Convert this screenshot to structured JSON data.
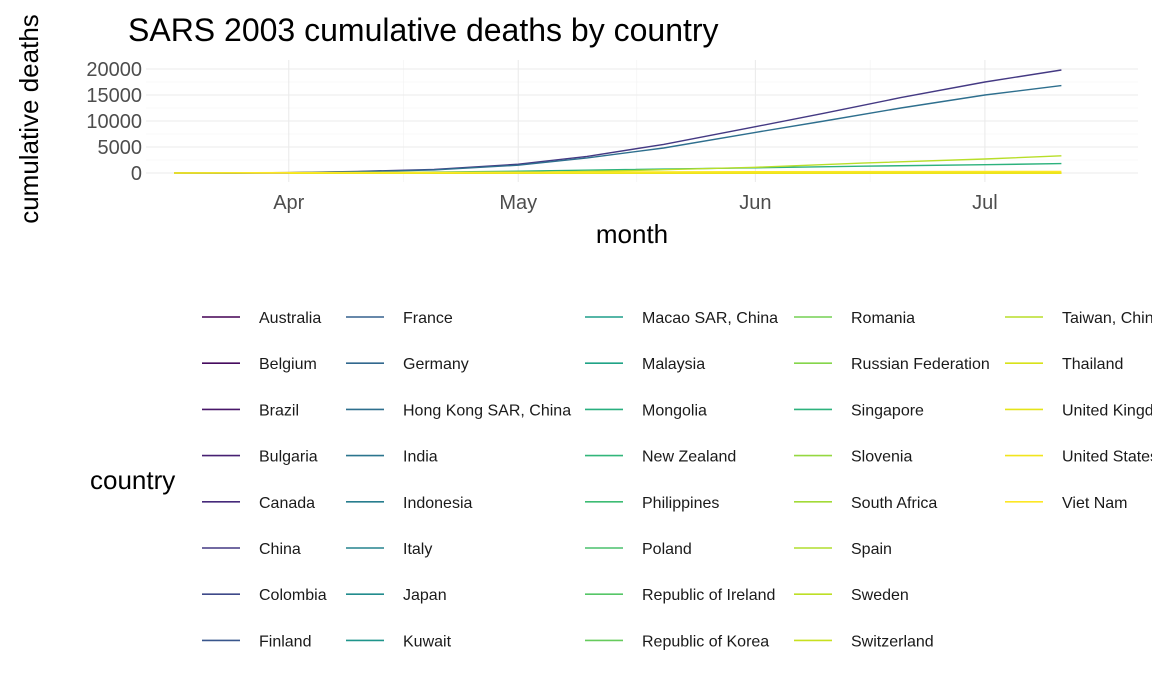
{
  "chart_data": {
    "type": "line",
    "title": "SARS 2003 cumulative deaths by country",
    "xlabel": "month",
    "ylabel": "cumulative deaths",
    "x_ticks": [
      {
        "date": "2003-04-01",
        "label": "Apr"
      },
      {
        "date": "2003-05-01",
        "label": "May"
      },
      {
        "date": "2003-06-01",
        "label": "Jun"
      },
      {
        "date": "2003-07-01",
        "label": "Jul"
      }
    ],
    "y_ticks": [
      0,
      5000,
      10000,
      15000,
      20000
    ],
    "xlim": [
      "2003-03-17",
      "2003-07-11"
    ],
    "ylim": [
      0,
      20000
    ],
    "grid": true,
    "legend_position": "bottom",
    "legend_title": "country",
    "series": [
      {
        "name": "Australia",
        "color": "#440154",
        "x": [
          "2003-04-01",
          "2003-05-01",
          "2003-06-01",
          "2003-07-11"
        ],
        "values": [
          0,
          0,
          0,
          0
        ]
      },
      {
        "name": "Belgium",
        "color": "#460b5e",
        "x": [
          "2003-04-01",
          "2003-05-01",
          "2003-06-01",
          "2003-07-11"
        ],
        "values": [
          0,
          0,
          0,
          0
        ]
      },
      {
        "name": "Brazil",
        "color": "#481769",
        "x": [
          "2003-04-01",
          "2003-05-01",
          "2003-06-01",
          "2003-07-11"
        ],
        "values": [
          0,
          0,
          0,
          0
        ]
      },
      {
        "name": "Bulgaria",
        "color": "#472072",
        "x": [
          "2003-04-01",
          "2003-05-01",
          "2003-06-01",
          "2003-07-11"
        ],
        "values": [
          0,
          0,
          0,
          0
        ]
      },
      {
        "name": "Canada",
        "color": "#46297a",
        "x": [
          "2003-03-17",
          "2003-04-01",
          "2003-05-01",
          "2003-06-01",
          "2003-07-11"
        ],
        "values": [
          0,
          0,
          0,
          0,
          0
        ]
      },
      {
        "name": "China",
        "color": "#443983",
        "x": [
          "2003-03-17",
          "2003-03-25",
          "2003-04-01",
          "2003-04-10",
          "2003-04-20",
          "2003-05-01",
          "2003-05-10",
          "2003-05-20",
          "2003-06-01",
          "2003-06-10",
          "2003-06-20",
          "2003-07-01",
          "2003-07-11"
        ],
        "values": [
          0,
          0,
          80,
          300,
          700,
          1700,
          3200,
          5500,
          8900,
          11500,
          14500,
          17500,
          19800
        ]
      },
      {
        "name": "Colombia",
        "color": "#3e4989",
        "x": [
          "2003-04-01",
          "2003-05-01",
          "2003-06-01",
          "2003-07-11"
        ],
        "values": [
          0,
          0,
          0,
          0
        ]
      },
      {
        "name": "Finland",
        "color": "#39568c",
        "x": [
          "2003-04-01",
          "2003-05-01",
          "2003-06-01",
          "2003-07-11"
        ],
        "values": [
          0,
          0,
          0,
          0
        ]
      },
      {
        "name": "France",
        "color": "#35608d",
        "x": [
          "2003-04-01",
          "2003-05-01",
          "2003-06-01",
          "2003-07-11"
        ],
        "values": [
          0,
          0,
          0,
          0
        ]
      },
      {
        "name": "Germany",
        "color": "#31688e",
        "x": [
          "2003-04-01",
          "2003-05-01",
          "2003-06-01",
          "2003-07-11"
        ],
        "values": [
          0,
          0,
          0,
          0
        ]
      },
      {
        "name": "Hong Kong SAR, China",
        "color": "#2e6f8e",
        "x": [
          "2003-03-17",
          "2003-03-25",
          "2003-04-01",
          "2003-04-10",
          "2003-04-20",
          "2003-05-01",
          "2003-05-10",
          "2003-05-20",
          "2003-06-01",
          "2003-06-10",
          "2003-06-20",
          "2003-07-01",
          "2003-07-11"
        ],
        "values": [
          0,
          0,
          60,
          250,
          600,
          1500,
          2900,
          4800,
          7800,
          10000,
          12500,
          15000,
          16800
        ]
      },
      {
        "name": "India",
        "color": "#2b758e",
        "x": [
          "2003-04-01",
          "2003-05-01",
          "2003-06-01",
          "2003-07-11"
        ],
        "values": [
          0,
          0,
          0,
          0
        ]
      },
      {
        "name": "Indonesia",
        "color": "#287d8e",
        "x": [
          "2003-04-01",
          "2003-05-01",
          "2003-06-01",
          "2003-07-11"
        ],
        "values": [
          0,
          0,
          0,
          0
        ]
      },
      {
        "name": "Italy",
        "color": "#25838e",
        "x": [
          "2003-04-01",
          "2003-05-01",
          "2003-06-01",
          "2003-07-11"
        ],
        "values": [
          0,
          0,
          0,
          0
        ]
      },
      {
        "name": "Japan",
        "color": "#228c8d",
        "x": [
          "2003-04-01",
          "2003-05-01",
          "2003-06-01",
          "2003-07-11"
        ],
        "values": [
          0,
          0,
          0,
          0
        ]
      },
      {
        "name": "Kuwait",
        "color": "#1f958b",
        "x": [
          "2003-04-01",
          "2003-05-01",
          "2003-06-01",
          "2003-07-11"
        ],
        "values": [
          0,
          0,
          0,
          0
        ]
      },
      {
        "name": "Macao SAR, China",
        "color": "#1f9d8a",
        "x": [
          "2003-04-01",
          "2003-05-01",
          "2003-06-01",
          "2003-07-11"
        ],
        "values": [
          0,
          0,
          0,
          0
        ]
      },
      {
        "name": "Malaysia",
        "color": "#20a386",
        "x": [
          "2003-04-01",
          "2003-05-01",
          "2003-06-01",
          "2003-07-11"
        ],
        "values": [
          0,
          0,
          0,
          0
        ]
      },
      {
        "name": "Mongolia",
        "color": "#29af7f",
        "x": [
          "2003-04-01",
          "2003-05-01",
          "2003-06-01",
          "2003-07-11"
        ],
        "values": [
          0,
          0,
          0,
          0
        ]
      },
      {
        "name": "New Zealand",
        "color": "#32b67a",
        "x": [
          "2003-04-01",
          "2003-05-01",
          "2003-06-01",
          "2003-07-11"
        ],
        "values": [
          0,
          0,
          0,
          0
        ]
      },
      {
        "name": "Philippines",
        "color": "#3dbc74",
        "x": [
          "2003-04-01",
          "2003-05-01",
          "2003-06-01",
          "2003-07-11"
        ],
        "values": [
          0,
          0,
          0,
          0
        ]
      },
      {
        "name": "Poland",
        "color": "#4ac16d",
        "x": [
          "2003-04-01",
          "2003-05-01",
          "2003-06-01",
          "2003-07-11"
        ],
        "values": [
          0,
          0,
          0,
          0
        ]
      },
      {
        "name": "Republic of Ireland",
        "color": "#56c667",
        "x": [
          "2003-04-01",
          "2003-05-01",
          "2003-06-01",
          "2003-07-11"
        ],
        "values": [
          0,
          0,
          0,
          0
        ]
      },
      {
        "name": "Republic of Korea",
        "color": "#66cb5d",
        "x": [
          "2003-04-01",
          "2003-05-01",
          "2003-06-01",
          "2003-07-11"
        ],
        "values": [
          0,
          0,
          0,
          0
        ]
      },
      {
        "name": "Romania",
        "color": "#75d054",
        "x": [
          "2003-04-01",
          "2003-05-01",
          "2003-06-01",
          "2003-07-11"
        ],
        "values": [
          0,
          0,
          0,
          0
        ]
      },
      {
        "name": "Russian Federation",
        "color": "#85d54a",
        "x": [
          "2003-04-01",
          "2003-05-01",
          "2003-06-01",
          "2003-07-11"
        ],
        "values": [
          0,
          0,
          0,
          0
        ]
      },
      {
        "name": "Singapore",
        "color": "#2db27d",
        "x": [
          "2003-03-17",
          "2003-04-01",
          "2003-04-15",
          "2003-05-01",
          "2003-05-15",
          "2003-06-01",
          "2003-06-15",
          "2003-07-01",
          "2003-07-11"
        ],
        "values": [
          0,
          30,
          120,
          350,
          650,
          1000,
          1300,
          1600,
          1800
        ]
      },
      {
        "name": "Slovenia",
        "color": "#95d840",
        "x": [
          "2003-04-01",
          "2003-05-01",
          "2003-06-01",
          "2003-07-11"
        ],
        "values": [
          0,
          0,
          0,
          0
        ]
      },
      {
        "name": "South Africa",
        "color": "#a2da37",
        "x": [
          "2003-04-01",
          "2003-05-01",
          "2003-06-01",
          "2003-07-11"
        ],
        "values": [
          0,
          0,
          0,
          0
        ]
      },
      {
        "name": "Spain",
        "color": "#b0dd2f",
        "x": [
          "2003-04-01",
          "2003-05-01",
          "2003-06-01",
          "2003-07-11"
        ],
        "values": [
          0,
          0,
          0,
          0
        ]
      },
      {
        "name": "Sweden",
        "color": "#bddf26",
        "x": [
          "2003-04-01",
          "2003-05-01",
          "2003-06-01",
          "2003-07-11"
        ],
        "values": [
          0,
          0,
          0,
          0
        ]
      },
      {
        "name": "Switzerland",
        "color": "#c8e020",
        "x": [
          "2003-04-01",
          "2003-05-01",
          "2003-06-01",
          "2003-07-11"
        ],
        "values": [
          0,
          0,
          0,
          0
        ]
      },
      {
        "name": "Taiwan, China",
        "color": "#b8de29",
        "x": [
          "2003-04-01",
          "2003-04-20",
          "2003-05-01",
          "2003-05-15",
          "2003-06-01",
          "2003-06-15",
          "2003-07-01",
          "2003-07-11"
        ],
        "values": [
          0,
          10,
          80,
          450,
          1100,
          1900,
          2700,
          3300
        ]
      },
      {
        "name": "Thailand",
        "color": "#d8e219",
        "x": [
          "2003-04-01",
          "2003-05-01",
          "2003-06-01",
          "2003-07-11"
        ],
        "values": [
          0,
          0,
          0,
          0
        ]
      },
      {
        "name": "United Kingdom",
        "color": "#e5e419",
        "x": [
          "2003-04-01",
          "2003-05-01",
          "2003-06-01",
          "2003-07-11"
        ],
        "values": [
          0,
          0,
          0,
          0
        ]
      },
      {
        "name": "United States",
        "color": "#f1e51d",
        "x": [
          "2003-03-17",
          "2003-04-01",
          "2003-05-01",
          "2003-06-01",
          "2003-07-11"
        ],
        "values": [
          0,
          0,
          0,
          0,
          0
        ]
      },
      {
        "name": "Viet Nam",
        "color": "#fde725",
        "x": [
          "2003-03-17",
          "2003-04-01",
          "2003-05-01",
          "2003-06-01",
          "2003-07-11"
        ],
        "values": [
          0,
          80,
          150,
          250,
          300
        ]
      }
    ]
  }
}
